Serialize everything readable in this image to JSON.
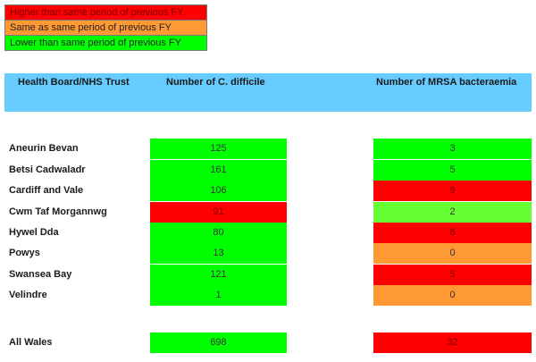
{
  "colors": {
    "higher": "#ff0000",
    "same": "#ff9933",
    "lower": "#00ff00",
    "lower_light": "#66ff33",
    "header": "#66ccff"
  },
  "legend": [
    {
      "label": "Higher than same period of previous FY",
      "status": "higher"
    },
    {
      "label": "Same as same period of previous FY",
      "status": "same"
    },
    {
      "label": "Lower than same period of previous FY",
      "status": "lower"
    }
  ],
  "headers": {
    "trust": "Health Board/NHS Trust",
    "cdiff": "Number of C. difficile",
    "mrsa": "Number of MRSA bacteraemia"
  },
  "rows": [
    {
      "name": "Aneurin Bevan",
      "cdiff": "125",
      "cdiff_status": "lower",
      "mrsa": "3",
      "mrsa_status": "lower"
    },
    {
      "name": "Betsi Cadwaladr",
      "cdiff": "161",
      "cdiff_status": "lower",
      "mrsa": "5",
      "mrsa_status": "lower"
    },
    {
      "name": "Cardiff and Vale",
      "cdiff": "106",
      "cdiff_status": "lower",
      "mrsa": "9",
      "mrsa_status": "higher"
    },
    {
      "name": "Cwm Taf Morgannwg",
      "cdiff": "91",
      "cdiff_status": "higher",
      "mrsa": "2",
      "mrsa_status": "lower_light"
    },
    {
      "name": "Hywel Dda",
      "cdiff": "80",
      "cdiff_status": "lower",
      "mrsa": "8",
      "mrsa_status": "higher"
    },
    {
      "name": "Powys",
      "cdiff": "13",
      "cdiff_status": "lower",
      "mrsa": "0",
      "mrsa_status": "same"
    },
    {
      "name": "Swansea Bay",
      "cdiff": "121",
      "cdiff_status": "lower",
      "mrsa": "5",
      "mrsa_status": "higher"
    },
    {
      "name": "Velindre",
      "cdiff": "1",
      "cdiff_status": "lower",
      "mrsa": "0",
      "mrsa_status": "same"
    }
  ],
  "total": {
    "name": "All Wales",
    "cdiff": "698",
    "cdiff_status": "lower",
    "mrsa": "32",
    "mrsa_status": "higher"
  }
}
